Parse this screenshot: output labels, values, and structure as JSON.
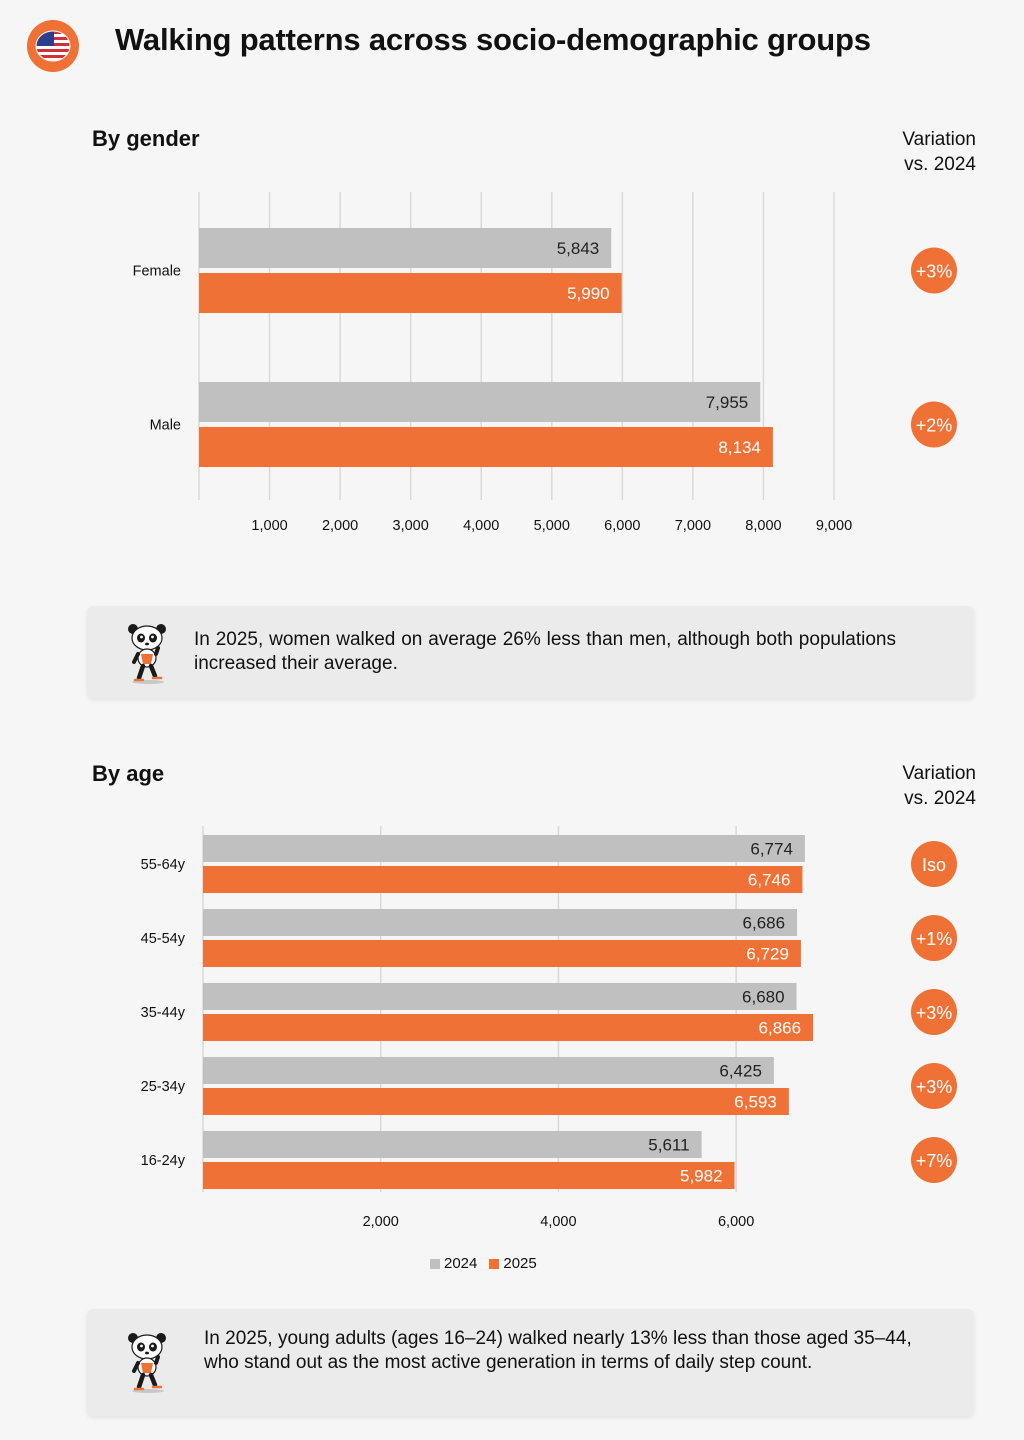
{
  "page": {
    "title": "Walking patterns across socio-demographic groups",
    "flag_icon": "us-flag-icon"
  },
  "colors": {
    "y2024": "#c0c0c0",
    "y2025": "#ef7135",
    "grid": "#d9d9d9",
    "badge": "#ef7135"
  },
  "gender_section": {
    "title": "By gender",
    "variation_header_line1": "Variation",
    "variation_header_line2": "vs. 2024",
    "note": "In 2025, women walked on average 26% less than men, although both populations increased their average."
  },
  "age_section": {
    "title": "By age",
    "variation_header_line1": "Variation",
    "variation_header_line2": "vs. 2024",
    "note": "In 2025, young adults (ages 16–24) walked nearly 13% less than those aged 35–44, who stand out as the most active generation in terms of daily step count."
  },
  "legend": {
    "items": [
      {
        "label": "2024"
      },
      {
        "label": "2025"
      }
    ]
  },
  "chart_data": [
    {
      "type": "bar",
      "orientation": "horizontal",
      "categories": [
        "Female",
        "Male"
      ],
      "series": [
        {
          "name": "2024",
          "values": [
            5843,
            7955
          ]
        },
        {
          "name": "2025",
          "values": [
            5990,
            8134
          ]
        }
      ],
      "value_labels_2024": [
        "5,843",
        "7,955"
      ],
      "value_labels_2025": [
        "5,990",
        "8,134"
      ],
      "variation": [
        "+3%",
        "+2%"
      ],
      "xlim": [
        0,
        9000
      ],
      "ticks": [
        1000,
        2000,
        3000,
        4000,
        5000,
        6000,
        7000,
        8000,
        9000
      ],
      "tick_labels": [
        "1,000",
        "2,000",
        "3,000",
        "4,000",
        "5,000",
        "6,000",
        "7,000",
        "8,000",
        "9,000"
      ],
      "grid": true
    },
    {
      "type": "bar",
      "orientation": "horizontal",
      "categories": [
        "55-64y",
        "45-54y",
        "35-44y",
        "25-34y",
        "16-24y"
      ],
      "series": [
        {
          "name": "2024",
          "values": [
            6774,
            6686,
            6680,
            6425,
            5611
          ]
        },
        {
          "name": "2025",
          "values": [
            6746,
            6729,
            6866,
            6593,
            5982
          ]
        }
      ],
      "value_labels_2024": [
        "6,774",
        "6,686",
        "6,680",
        "6,425",
        "5,611"
      ],
      "value_labels_2025": [
        "6,746",
        "6,729",
        "6,866",
        "6,593",
        "5,982"
      ],
      "variation": [
        "Iso",
        "+1%",
        "+3%",
        "+3%",
        "+7%"
      ],
      "xlim": [
        0,
        7000
      ],
      "ticks": [
        2000,
        4000,
        6000
      ],
      "tick_labels": [
        "2,000",
        "4,000",
        "6,000"
      ],
      "grid": true,
      "legend": "bottom"
    }
  ]
}
